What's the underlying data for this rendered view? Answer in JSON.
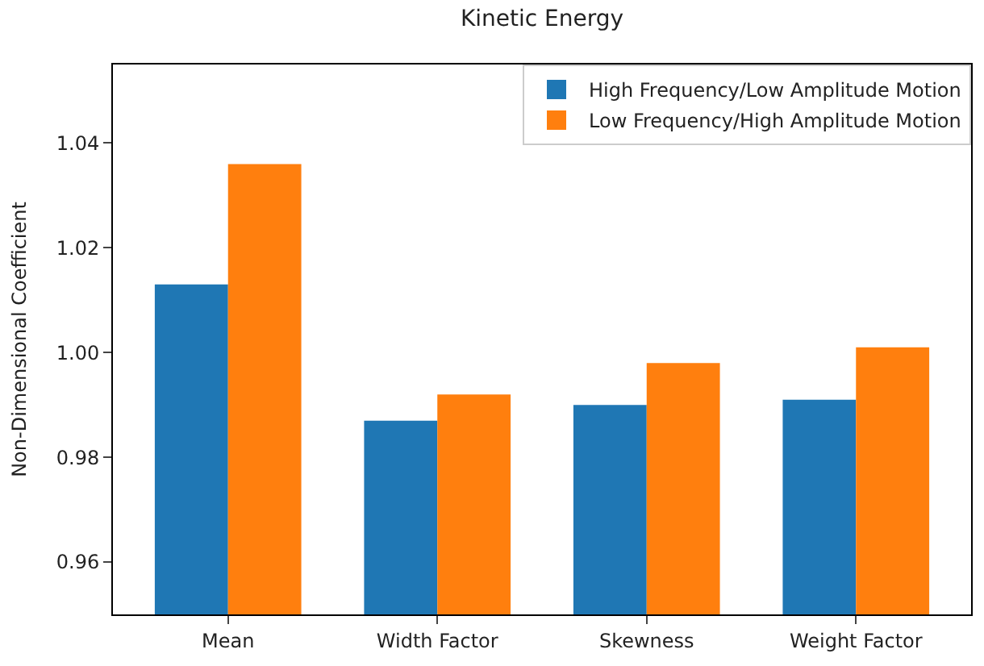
{
  "chart_data": {
    "type": "bar",
    "title": "Kinetic Energy",
    "ylabel": "Non-Dimensional Coefficient",
    "categories": [
      "Mean",
      "Width Factor",
      "Skewness",
      "Weight Factor"
    ],
    "series": [
      {
        "name": "High Frequency/Low Amplitude Motion",
        "color": "#1f77b4",
        "values": [
          1.013,
          0.987,
          0.99,
          0.991
        ]
      },
      {
        "name": "Low Frequency/High Amplitude Motion",
        "color": "#ff7f0e",
        "values": [
          1.036,
          0.992,
          0.998,
          1.001
        ]
      }
    ],
    "ylim": [
      0.95,
      1.055
    ],
    "yticks": [
      0.96,
      0.98,
      {
        "value": 1,
        "label": "1.00"
      },
      1.02,
      1.04
    ],
    "legend": "top right"
  }
}
